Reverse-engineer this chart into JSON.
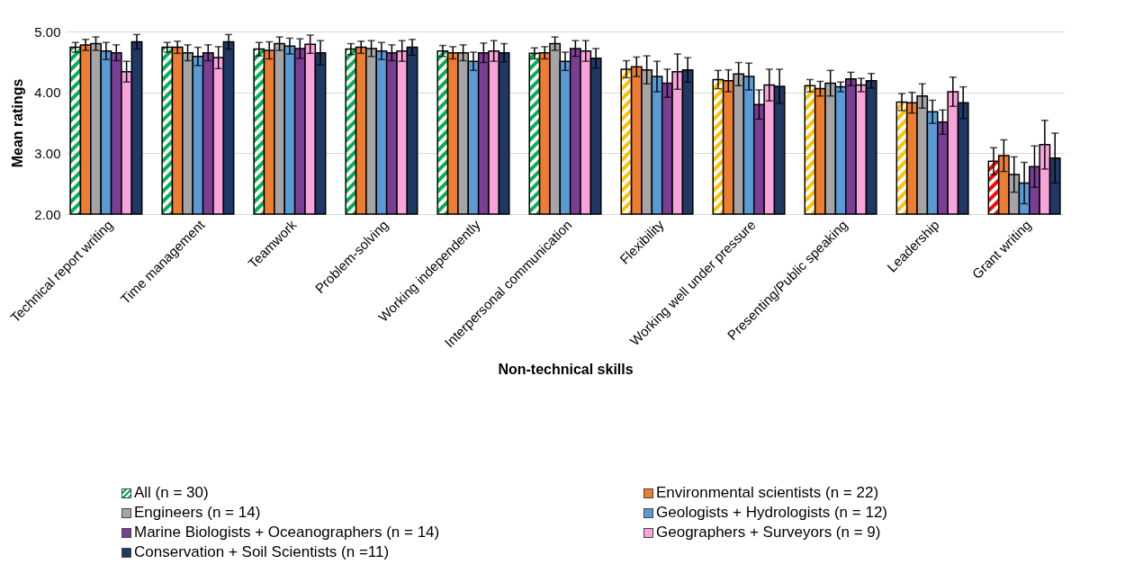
{
  "chart_data": {
    "type": "bar",
    "xlabel": "Non-technical skills",
    "ylabel": "Mean ratings",
    "categories": [
      "Technical report writing",
      "Time management",
      "Teamwork",
      "Problem-solving",
      "Working independently",
      "Interpersonal communication",
      "Flexibility",
      "Working well under pressure",
      "Presenting/Public speaking",
      "Leadership",
      "Grant writing"
    ],
    "ylim": [
      2,
      5
    ],
    "yticks": [
      {
        "value": 2,
        "label": "2.00"
      },
      {
        "value": 3,
        "label": "3.00"
      },
      {
        "value": 4,
        "label": "4.00"
      },
      {
        "value": 5,
        "label": "5.00"
      }
    ],
    "grid": "y",
    "legend": "bottom",
    "series": [
      {
        "name": "All (n = 30)",
        "colors": [
          "#00b050",
          "#00b050",
          "#00b050",
          "#00b050",
          "#00b050",
          "#00b050",
          "#ffc000",
          "#ffc000",
          "#ffc000",
          "#ffc000",
          "#ff0000"
        ],
        "values": [
          4.74,
          4.74,
          4.71,
          4.71,
          4.68,
          4.64,
          4.38,
          4.21,
          4.11,
          3.84,
          2.87
        ],
        "errors": [
          0.08,
          0.08,
          0.11,
          0.09,
          0.09,
          0.09,
          0.14,
          0.15,
          0.1,
          0.14,
          0.22
        ]
      },
      {
        "name": "Environmental scientists (n = 22)",
        "color": "#ed7d31",
        "values": [
          4.78,
          4.74,
          4.69,
          4.74,
          4.65,
          4.65,
          4.42,
          4.19,
          4.06,
          3.83,
          2.96
        ],
        "errors": [
          0.09,
          0.1,
          0.14,
          0.1,
          0.1,
          0.1,
          0.16,
          0.18,
          0.12,
          0.17,
          0.26
        ]
      },
      {
        "name": "Engineers (n = 14)",
        "color": "#a5a5a5",
        "values": [
          4.8,
          4.65,
          4.8,
          4.72,
          4.65,
          4.8,
          4.37,
          4.3,
          4.15,
          3.94,
          2.65
        ],
        "errors": [
          0.11,
          0.13,
          0.11,
          0.13,
          0.13,
          0.11,
          0.23,
          0.19,
          0.21,
          0.2,
          0.29
        ]
      },
      {
        "name": "Geologists + Hydrologists (n = 12)",
        "color": "#5b9bd5",
        "values": [
          4.68,
          4.59,
          4.76,
          4.68,
          4.51,
          4.51,
          4.26,
          4.26,
          4.09,
          3.68,
          2.51
        ],
        "errors": [
          0.14,
          0.15,
          0.13,
          0.14,
          0.15,
          0.15,
          0.25,
          0.22,
          0.08,
          0.19,
          0.34
        ]
      },
      {
        "name": "Marine Biologists + Oceanographers (n = 14)",
        "color": "#7a3f93",
        "values": [
          4.65,
          4.65,
          4.72,
          4.65,
          4.65,
          4.72,
          4.15,
          3.8,
          4.22,
          3.51,
          2.78
        ],
        "errors": [
          0.13,
          0.13,
          0.16,
          0.13,
          0.16,
          0.13,
          0.23,
          0.24,
          0.11,
          0.2,
          0.34
        ]
      },
      {
        "name": "Geographers + Surveyors (n = 9)",
        "color": "#f9a3db",
        "values": [
          4.34,
          4.57,
          4.79,
          4.68,
          4.68,
          4.68,
          4.34,
          4.12,
          4.12,
          4.01,
          3.14
        ],
        "errors": [
          0.17,
          0.18,
          0.15,
          0.17,
          0.17,
          0.17,
          0.29,
          0.26,
          0.11,
          0.24,
          0.4
        ]
      },
      {
        "name": "Conservation + Soil Scientists (n =11)",
        "color": "#203864",
        "values": [
          4.83,
          4.83,
          4.65,
          4.74,
          4.65,
          4.56,
          4.37,
          4.1,
          4.19,
          3.83,
          2.92
        ],
        "errors": [
          0.12,
          0.12,
          0.2,
          0.13,
          0.15,
          0.16,
          0.2,
          0.28,
          0.12,
          0.26,
          0.41
        ]
      }
    ]
  }
}
